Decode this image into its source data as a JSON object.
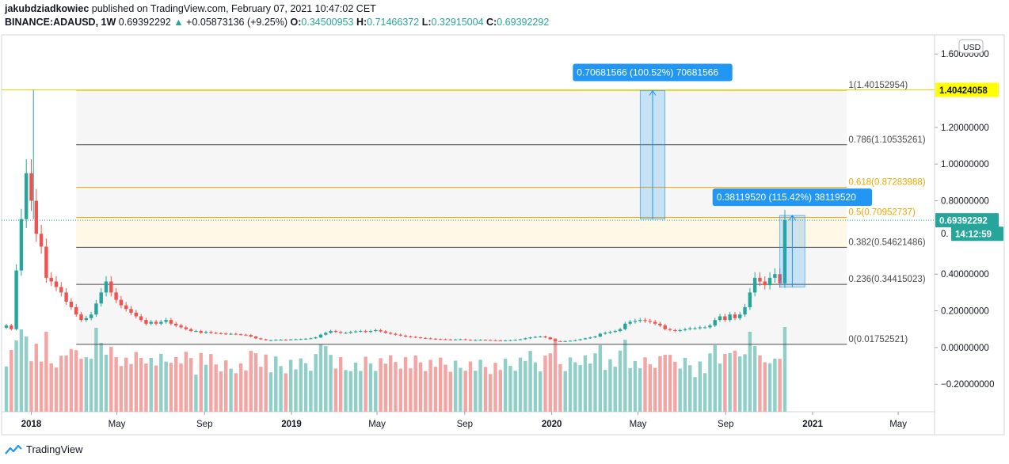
{
  "header": {
    "author": "jakubdziadkowiec",
    "published": "published on TradingView.com, February 07, 2021 10:47:02 CET",
    "symbol": "BINANCE:ADAUSD, 1W",
    "last": "0.69392292",
    "change_arrow": "▲",
    "change": "+0.05873136 (+9.25%)",
    "o_label": "O:",
    "o_value": "0.34500953",
    "h_label": "H:",
    "h_value": "0.71466372",
    "l_label": "L:",
    "l_value": "0.32915004",
    "c_label": "C:",
    "c_value": "0.69392292"
  },
  "footer": {
    "brand": "TradingView",
    "logo_icon": "tradingview-logo-icon"
  },
  "chart_data": {
    "type": "candlestick",
    "currency_button": "USD",
    "y_axis": {
      "min": -0.35,
      "max": 1.7,
      "ticks": [
        {
          "v": 1.6,
          "label": "1.60000000"
        },
        {
          "v": 1.2,
          "label": "1.20000000"
        },
        {
          "v": 1.0,
          "label": "1.00000000"
        },
        {
          "v": 0.8,
          "label": "0.80000000"
        },
        {
          "v": 0.4,
          "label": "0.40000000"
        },
        {
          "v": 0.2,
          "label": "0.20000000"
        },
        {
          "v": 0.0,
          "label": "0.00000000"
        },
        {
          "v": -0.2,
          "label": "−0.20000000"
        }
      ]
    },
    "x_axis": {
      "start": "2017-11-27",
      "end": "2021-06-21",
      "ticks": [
        {
          "date": "2018-01-01",
          "label": "2018",
          "bold": true
        },
        {
          "date": "2018-05-01",
          "label": "May"
        },
        {
          "date": "2018-09-01",
          "label": "Sep"
        },
        {
          "date": "2019-01-01",
          "label": "2019",
          "bold": true
        },
        {
          "date": "2019-05-01",
          "label": "May"
        },
        {
          "date": "2019-09-01",
          "label": "Sep"
        },
        {
          "date": "2020-01-01",
          "label": "2020",
          "bold": true
        },
        {
          "date": "2020-05-01",
          "label": "May"
        },
        {
          "date": "2020-09-01",
          "label": "Sep"
        },
        {
          "date": "2021-01-01",
          "label": "2021",
          "bold": true
        },
        {
          "date": "2021-05-01",
          "label": "May"
        }
      ]
    },
    "first_candle_date": "2017-11-27",
    "closes": [
      0.12,
      0.1,
      0.42,
      0.7,
      0.95,
      0.8,
      0.62,
      0.55,
      0.38,
      0.36,
      0.33,
      0.3,
      0.25,
      0.22,
      0.18,
      0.15,
      0.16,
      0.18,
      0.24,
      0.3,
      0.36,
      0.3,
      0.26,
      0.23,
      0.21,
      0.19,
      0.17,
      0.15,
      0.13,
      0.14,
      0.13,
      0.14,
      0.15,
      0.13,
      0.12,
      0.11,
      0.1,
      0.09,
      0.09,
      0.08,
      0.085,
      0.08,
      0.078,
      0.076,
      0.074,
      0.075,
      0.072,
      0.07,
      0.068,
      0.06,
      0.05,
      0.045,
      0.04,
      0.04,
      0.042,
      0.043,
      0.042,
      0.044,
      0.045,
      0.046,
      0.048,
      0.05,
      0.055,
      0.07,
      0.08,
      0.09,
      0.085,
      0.08,
      0.08,
      0.085,
      0.088,
      0.09,
      0.085,
      0.09,
      0.095,
      0.088,
      0.08,
      0.075,
      0.07,
      0.065,
      0.06,
      0.058,
      0.055,
      0.052,
      0.05,
      0.048,
      0.046,
      0.045,
      0.044,
      0.043,
      0.044,
      0.045,
      0.042,
      0.04,
      0.041,
      0.042,
      0.041,
      0.04,
      0.039,
      0.038,
      0.039,
      0.04,
      0.042,
      0.045,
      0.05,
      0.055,
      0.058,
      0.06,
      0.055,
      0.045,
      0.035,
      0.034,
      0.035,
      0.037,
      0.04,
      0.045,
      0.05,
      0.055,
      0.06,
      0.075,
      0.08,
      0.085,
      0.09,
      0.1,
      0.13,
      0.14,
      0.145,
      0.15,
      0.145,
      0.14,
      0.13,
      0.12,
      0.1,
      0.095,
      0.09,
      0.095,
      0.1,
      0.105,
      0.105,
      0.11,
      0.11,
      0.12,
      0.15,
      0.17,
      0.15,
      0.18,
      0.16,
      0.18,
      0.22,
      0.3,
      0.38,
      0.36,
      0.34,
      0.38,
      0.4,
      0.35,
      0.69392292
    ],
    "opens_note": "",
    "volume_bars": true,
    "fib_levels": [
      {
        "ratio": "1",
        "label": "1(1.40152954)",
        "value": 1.40152954,
        "color": "#d4c400"
      },
      {
        "ratio": "0.786",
        "label": "0.786(1.10535261)",
        "value": 1.10535261,
        "color": "#4a4a4a"
      },
      {
        "ratio": "0.618",
        "label": "0.618(0.87283988)",
        "value": 0.87283988,
        "color": "#f0a500"
      },
      {
        "ratio": "0.5",
        "label": "0.5(0.70952737)",
        "value": 0.70952737,
        "color": "#f0a500"
      },
      {
        "ratio": "0.382",
        "label": "0.382(0.54621486)",
        "value": 0.54621486,
        "color": "#4a4a4a"
      },
      {
        "ratio": "0.236",
        "label": "0.236(0.34415023)",
        "value": 0.34415023,
        "color": "#4a4a4a"
      },
      {
        "ratio": "0",
        "label": "0(0.01752521)",
        "value": 0.01752521,
        "color": "#4a4a4a"
      }
    ],
    "fib_start_date": "2018-03-05",
    "fib_end_date": "2021-02-07",
    "measures": [
      {
        "label": "0.70681566 (100.52%) 70681566",
        "from_date": "2020-05-04",
        "to_date": "2020-06-08",
        "low": 0.7,
        "high": 1.4
      },
      {
        "label": "0.38119520 (115.42%) 38119520",
        "from_date": "2020-11-16",
        "to_date": "2020-12-21",
        "low": 0.33,
        "high": 0.72
      }
    ],
    "price_tags": [
      {
        "label": "1.40424058",
        "value": 1.40424058,
        "bg": "#ffff00",
        "fg": "#131722"
      },
      {
        "label": "0.69392292",
        "value": 0.69392292,
        "bg": "#26a69a",
        "fg": "#ffffff"
      },
      {
        "label": "14:12:59",
        "value": 0.62,
        "bg": "#26a69a",
        "fg": "#ffffff"
      }
    ],
    "hidden_tick_fragments": [
      {
        "label": "0.",
        "value": 0.62
      }
    ],
    "ath_line_value": 1.40424058,
    "colors": {
      "up": "#26a69a",
      "down": "#ef5350",
      "vol_up": "#8fcfc8",
      "vol_down": "#f2a5a3",
      "measure": "#2196f3"
    }
  }
}
